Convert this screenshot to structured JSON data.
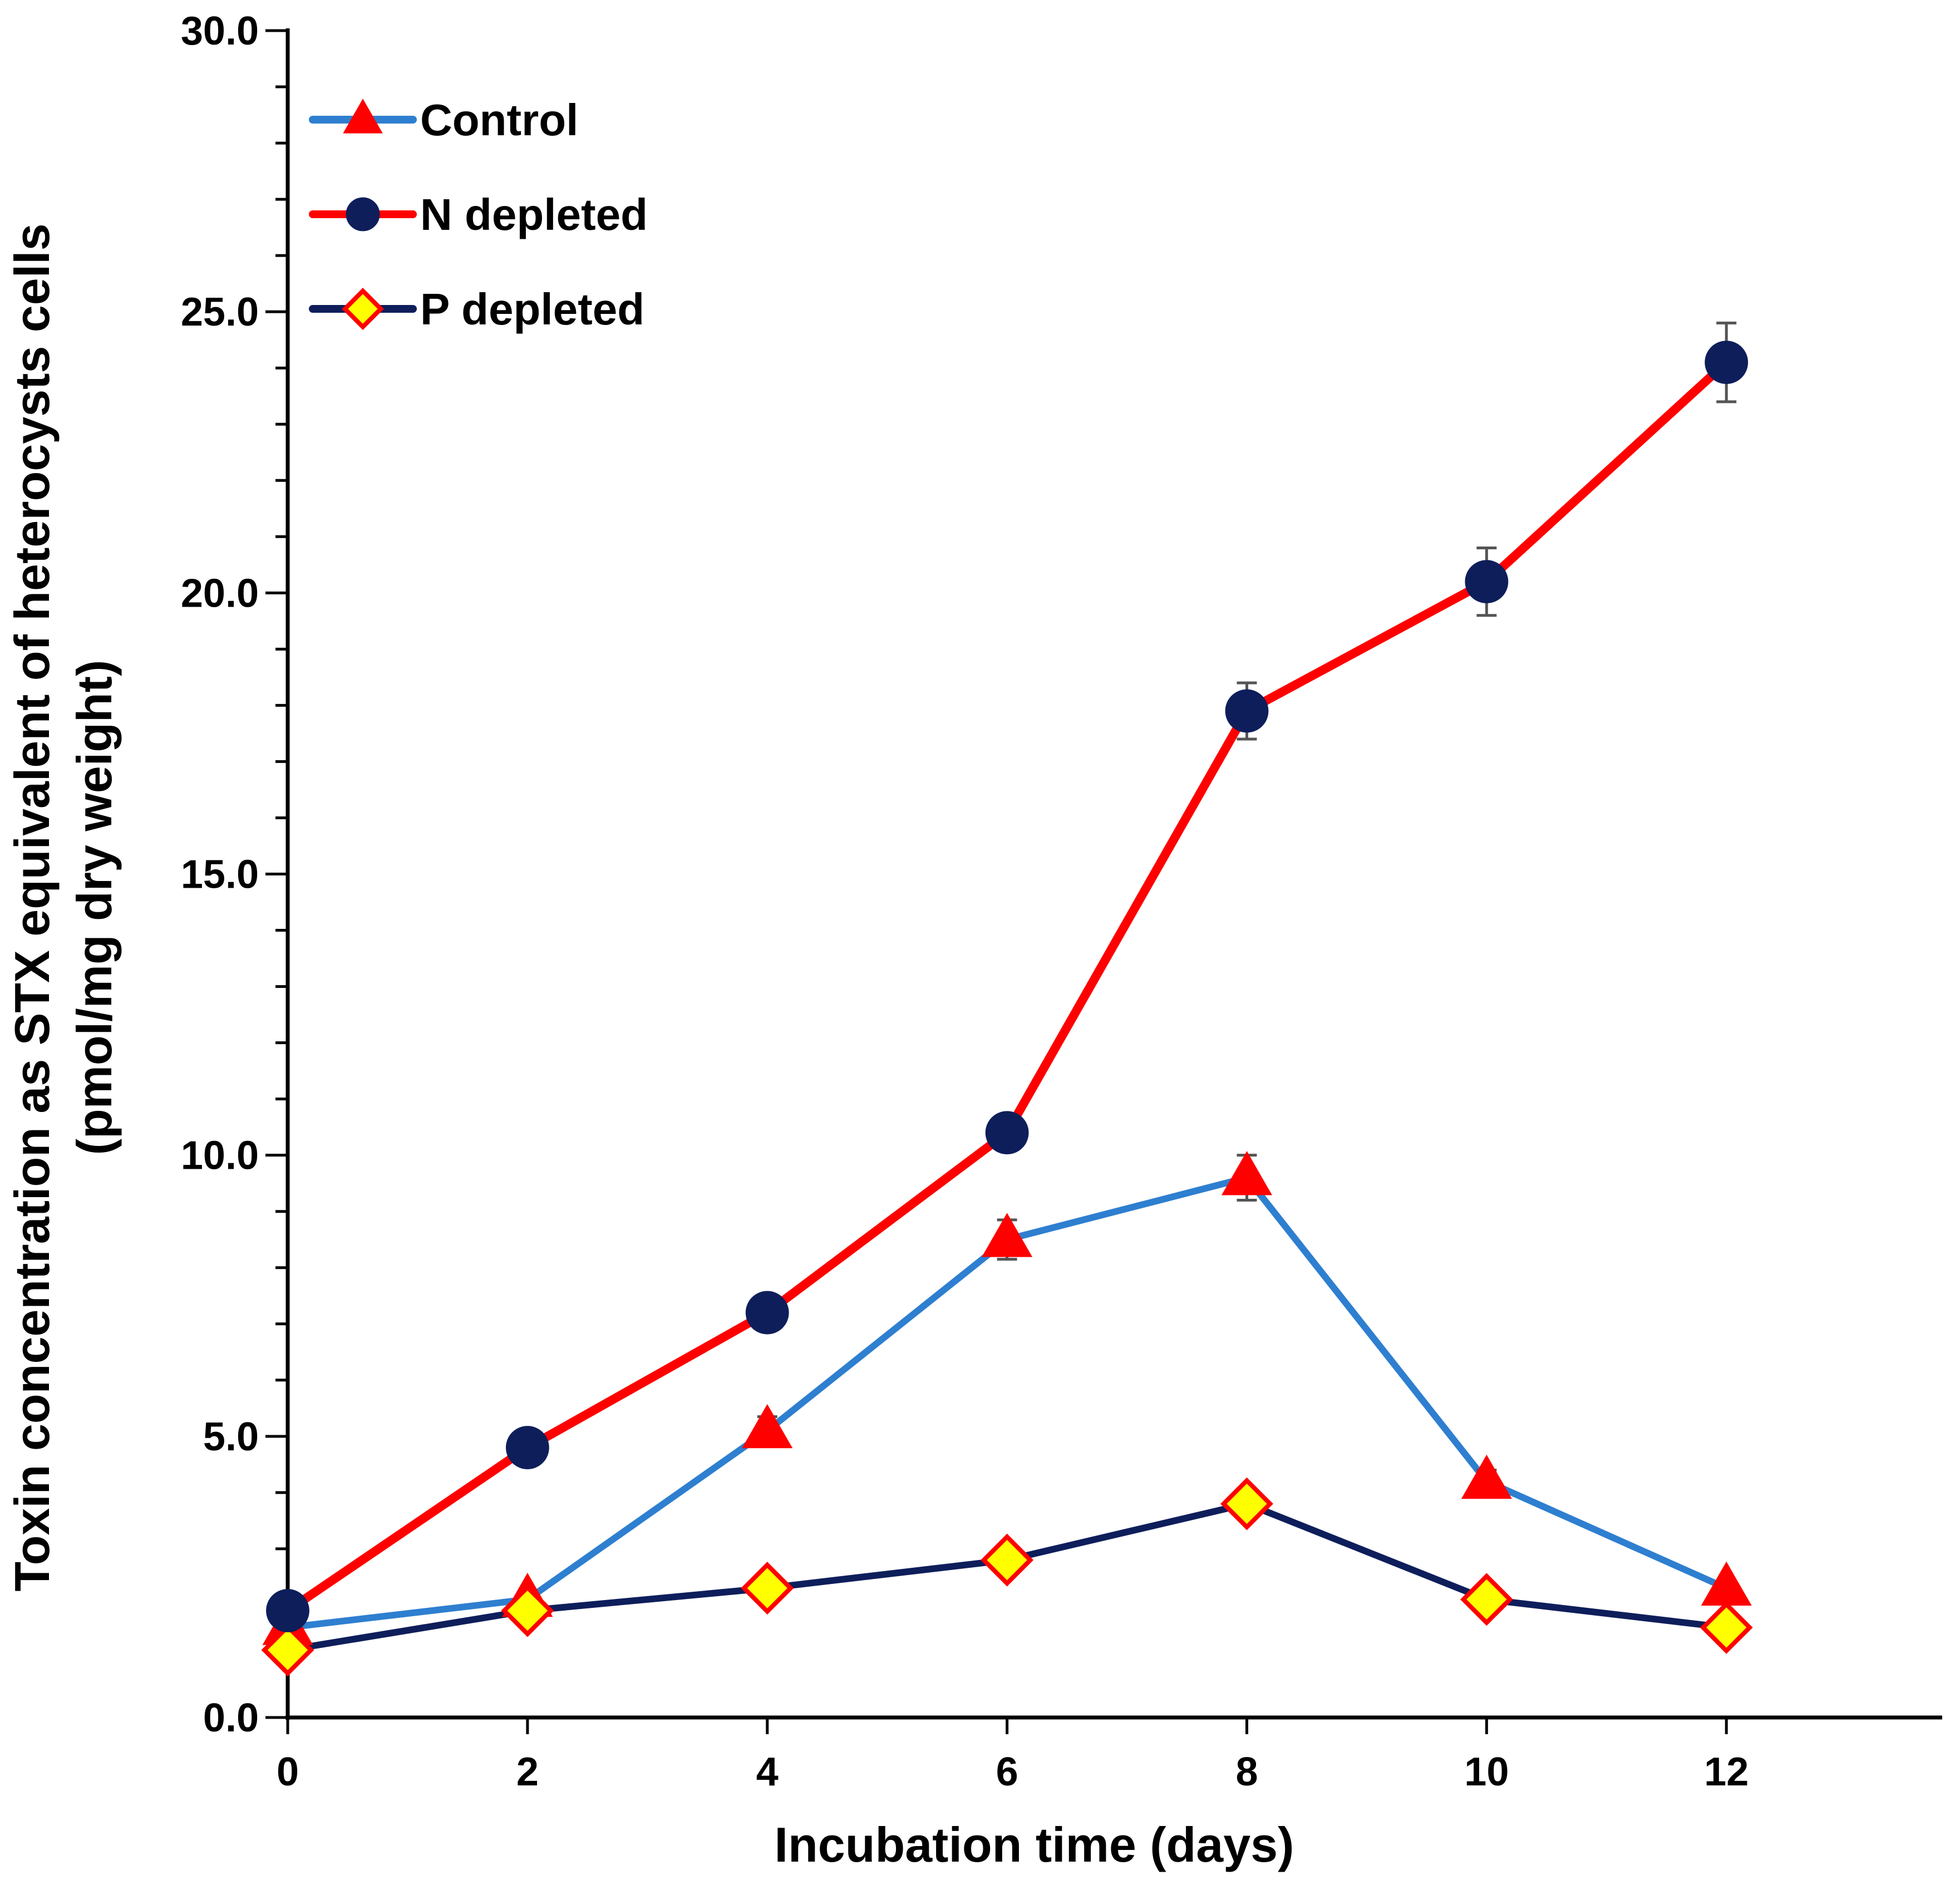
{
  "chart_data": {
    "type": "line",
    "title": "",
    "xlabel": "Incubation time (days)",
    "ylabel_line1": "Toxin concentration as STX equivalent of heterocysts cells",
    "ylabel_line2": "(pmol/mg dry weight)",
    "x": [
      0,
      2,
      4,
      6,
      8,
      10,
      12
    ],
    "xlim": [
      0,
      13.8
    ],
    "ylim": [
      0,
      30
    ],
    "x_tick_labels": [
      "0",
      "2",
      "4",
      "6",
      "8",
      "10",
      "12"
    ],
    "y_ticks": [
      0,
      5,
      10,
      15,
      20,
      25,
      30
    ],
    "y_tick_labels": [
      "0.0",
      "5.0",
      "10.0",
      "15.0",
      "20.0",
      "25.0",
      "30.0"
    ],
    "y_minor_step": 1,
    "legend_position": "top-left",
    "series": [
      {
        "name": "Control",
        "line_color": "#2E7FD0",
        "marker": "triangle",
        "marker_fill": "#FF0000",
        "marker_stroke": "#FF0000",
        "values": [
          1.6,
          2.1,
          5.1,
          8.5,
          9.6,
          4.2,
          2.3
        ],
        "errors": [
          0.1,
          0.1,
          0.25,
          0.35,
          0.4,
          0.2,
          0.1
        ]
      },
      {
        "name": "N depleted",
        "line_color": "#FF0000",
        "marker": "circle",
        "marker_fill": "#0E1E5B",
        "marker_stroke": "#0E1E5B",
        "values": [
          1.9,
          4.8,
          7.2,
          10.4,
          17.9,
          20.2,
          24.1
        ],
        "errors": [
          0.1,
          0.15,
          0.2,
          0.3,
          0.5,
          0.6,
          0.7
        ]
      },
      {
        "name": "P depleted",
        "line_color": "#0E1E5B",
        "marker": "diamond",
        "marker_fill": "#FFFF00",
        "marker_stroke": "#FF0000",
        "values": [
          1.2,
          1.9,
          2.3,
          2.8,
          3.8,
          2.1,
          1.6
        ],
        "errors": [
          0.05,
          0.05,
          0.05,
          0.1,
          0.1,
          0.05,
          0.05
        ]
      }
    ]
  }
}
